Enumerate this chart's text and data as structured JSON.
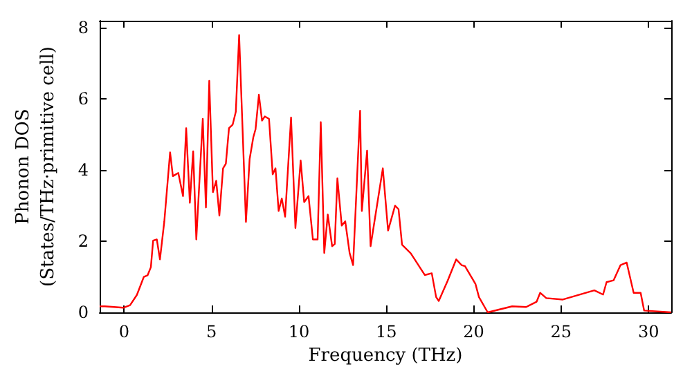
{
  "chart_data": {
    "type": "line",
    "xlabel": "Frequency (THz)",
    "ylabel": "Phonon DOS\n(States/THz·primitive cell)",
    "x": [
      -1.4,
      -1.1,
      -0.05,
      0.34,
      0.73,
      1.13,
      1.34,
      1.53,
      1.66,
      1.87,
      2.05,
      2.3,
      2.63,
      2.79,
      3.1,
      3.37,
      3.55,
      3.76,
      3.95,
      4.13,
      4.5,
      4.68,
      4.87,
      5.08,
      5.27,
      5.45,
      5.66,
      5.82,
      6.0,
      6.21,
      6.39,
      6.58,
      6.97,
      7.18,
      7.39,
      7.52,
      7.71,
      7.89,
      8.05,
      8.29,
      8.5,
      8.66,
      8.84,
      9.02,
      9.21,
      9.55,
      9.8,
      10.1,
      10.3,
      10.55,
      10.8,
      11.07,
      11.25,
      11.45,
      11.65,
      11.9,
      12.05,
      12.2,
      12.45,
      12.65,
      12.9,
      13.1,
      13.5,
      13.6,
      13.9,
      14.1,
      14.8,
      15.1,
      15.5,
      15.7,
      15.9,
      16.4,
      17.2,
      17.6,
      17.85,
      18.0,
      18.5,
      19.0,
      19.3,
      19.5,
      20.1,
      20.3,
      20.8,
      22.2,
      23.0,
      23.6,
      23.8,
      24.15,
      25.1,
      26.9,
      27.4,
      27.6,
      28.0,
      28.4,
      28.75,
      29.15,
      29.55,
      29.75,
      31.3
    ],
    "series": [
      {
        "color": "#ff0000",
        "values": [
          0.17,
          0.17,
          0.13,
          0.2,
          0.49,
          1.0,
          1.04,
          1.27,
          2.02,
          2.05,
          1.49,
          2.56,
          4.5,
          3.83,
          3.92,
          3.27,
          5.18,
          3.08,
          4.53,
          2.05,
          5.44,
          2.95,
          6.51,
          3.38,
          3.7,
          2.72,
          4.05,
          4.18,
          5.18,
          5.28,
          5.64,
          7.8,
          2.54,
          4.31,
          4.92,
          5.15,
          6.12,
          5.39,
          5.51,
          5.44,
          3.88,
          4.05,
          2.85,
          3.2,
          2.69,
          5.48,
          2.37,
          4.27,
          3.1,
          3.27,
          2.05,
          2.05,
          5.35,
          1.67,
          2.75,
          1.86,
          1.92,
          3.77,
          2.44,
          2.56,
          1.67,
          1.33,
          5.67,
          2.85,
          4.55,
          1.86,
          4.05,
          2.3,
          3.0,
          2.9,
          1.9,
          1.66,
          1.05,
          1.1,
          0.43,
          0.32,
          0.88,
          1.49,
          1.33,
          1.3,
          0.8,
          0.43,
          0.0,
          0.17,
          0.15,
          0.3,
          0.55,
          0.4,
          0.36,
          0.62,
          0.5,
          0.85,
          0.9,
          1.33,
          1.4,
          0.55,
          0.55,
          0.05,
          0.0
        ]
      }
    ],
    "xlim": [
      -1.4,
      31.3
    ],
    "xticks": [
      0,
      5,
      10,
      15,
      20,
      25,
      30
    ],
    "ylim": [
      0,
      8.2
    ],
    "yticks": [
      0,
      2,
      4,
      6,
      8
    ],
    "marker": "none",
    "line_style": "solid"
  }
}
